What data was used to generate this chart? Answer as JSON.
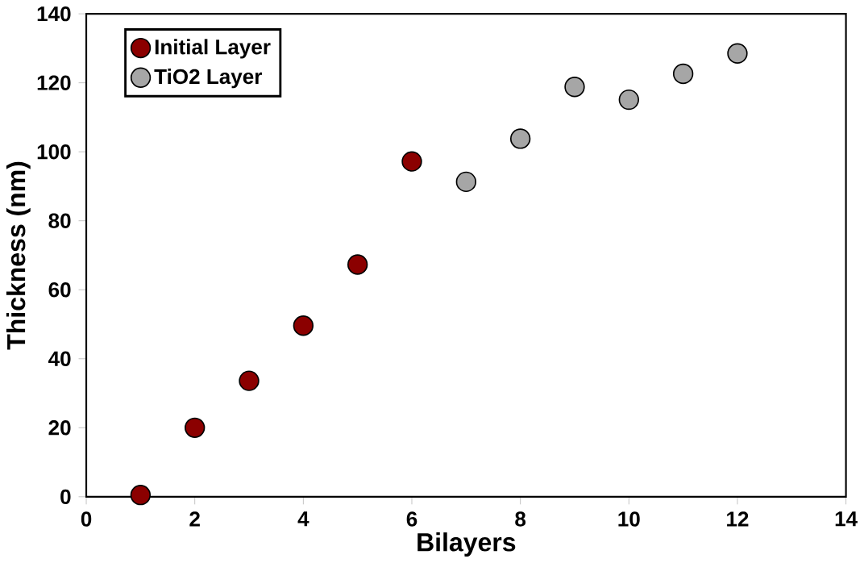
{
  "chart_data": {
    "type": "scatter",
    "xlabel": "Bilayers",
    "ylabel": "Thickness (nm)",
    "series": [
      {
        "name": "Initial Layer",
        "color": "#8b0000",
        "x": [
          1,
          2,
          3,
          4,
          5,
          6
        ],
        "values": [
          0.5,
          20.0,
          33.6,
          49.6,
          67.3,
          97.2
        ]
      },
      {
        "name": "TiO2 Layer",
        "color": "#a6a6a6",
        "x": [
          7,
          8,
          9,
          10,
          11,
          12
        ],
        "values": [
          91.3,
          103.8,
          118.8,
          115.1,
          122.6,
          128.5
        ]
      }
    ],
    "xlim": [
      0,
      14
    ],
    "xticks": [
      0,
      2,
      4,
      6,
      8,
      10,
      12,
      14
    ],
    "ylim": [
      0,
      140
    ],
    "yticks": [
      0,
      20,
      40,
      60,
      80,
      100,
      120,
      140
    ],
    "grid": false,
    "legend": "top left",
    "marker": "circle"
  }
}
